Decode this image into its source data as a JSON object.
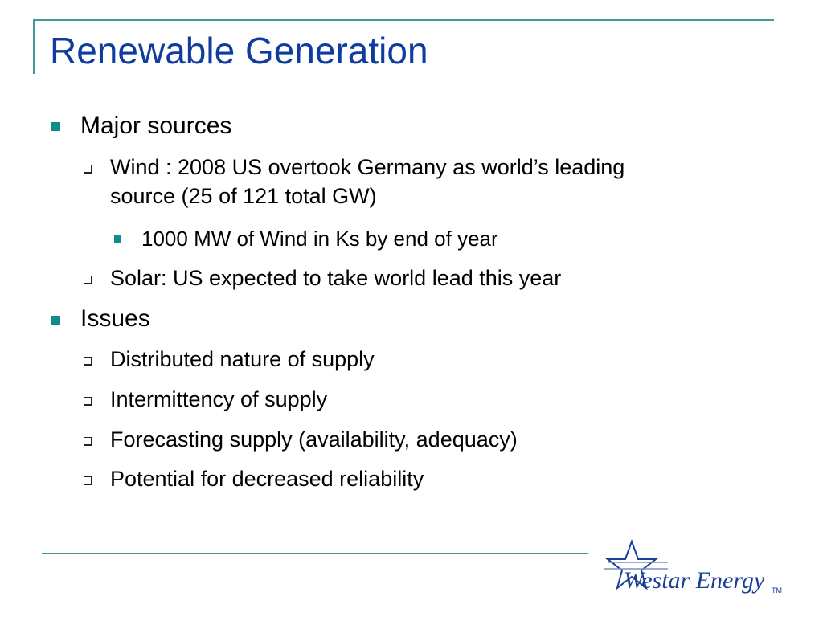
{
  "slide": {
    "title": "Renewable Generation",
    "bullets": {
      "b1": "Major sources",
      "b1_1": "Wind : 2008 US overtook Germany as world’s leading",
      "b1_1_cont": "source (25 of 121 total GW)",
      "b1_1_1": "1000 MW of Wind in Ks by end of year",
      "b1_2": "Solar:  US expected to take world lead this year",
      "b2": "Issues",
      "b2_1": "Distributed nature of supply",
      "b2_2": "Intermittency of supply",
      "b2_3": "Forecasting supply (availability, adequacy)",
      "b2_4": "Potential for decreased reliability"
    }
  },
  "logo": {
    "text": "Westar Energy",
    "tm": "TM"
  },
  "colors": {
    "title": "#0f3c9f",
    "accent": "#3f9a9a",
    "bullet": "#118c8c"
  }
}
